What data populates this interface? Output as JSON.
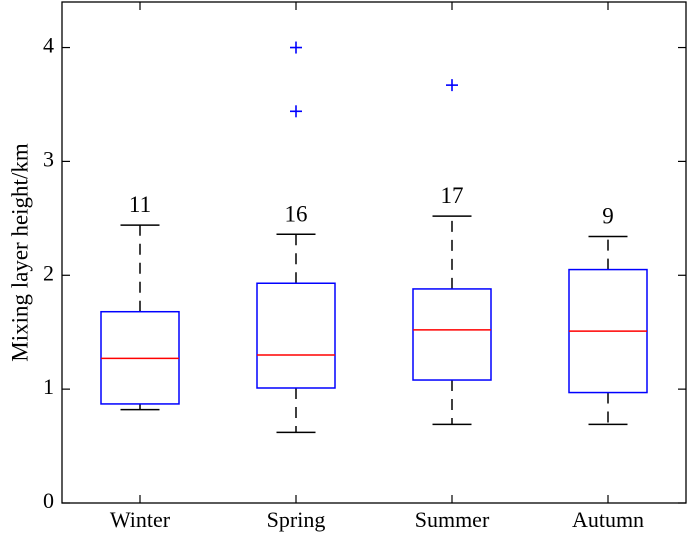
{
  "chart_data": {
    "type": "box",
    "title": "",
    "xlabel": "",
    "ylabel": "Mixing layer height/km",
    "ylim": [
      0,
      4.4
    ],
    "yticks": [
      0,
      1,
      2,
      3,
      4
    ],
    "grid": false,
    "colors": {
      "box": "#0000ff",
      "median": "#ff0000",
      "whisker": "#000000",
      "outlier": "#0000ff",
      "axis": "#000000"
    },
    "categories": [
      "Winter",
      "Spring",
      "Summer",
      "Autumn"
    ],
    "boxes": [
      {
        "category": "Winter",
        "count": "11",
        "whisker_low": 0.82,
        "q1": 0.87,
        "median": 1.27,
        "q3": 1.68,
        "whisker_high": 2.44,
        "outliers": []
      },
      {
        "category": "Spring",
        "count": "16",
        "whisker_low": 0.62,
        "q1": 1.01,
        "median": 1.3,
        "q3": 1.93,
        "whisker_high": 2.36,
        "outliers": [
          4.0,
          3.44
        ]
      },
      {
        "category": "Summer",
        "count": "17",
        "whisker_low": 0.69,
        "q1": 1.08,
        "median": 1.52,
        "q3": 1.88,
        "whisker_high": 2.52,
        "outliers": [
          3.67
        ]
      },
      {
        "category": "Autumn",
        "count": "9",
        "whisker_low": 0.69,
        "q1": 0.97,
        "median": 1.51,
        "q3": 2.05,
        "whisker_high": 2.34,
        "outliers": []
      }
    ]
  }
}
